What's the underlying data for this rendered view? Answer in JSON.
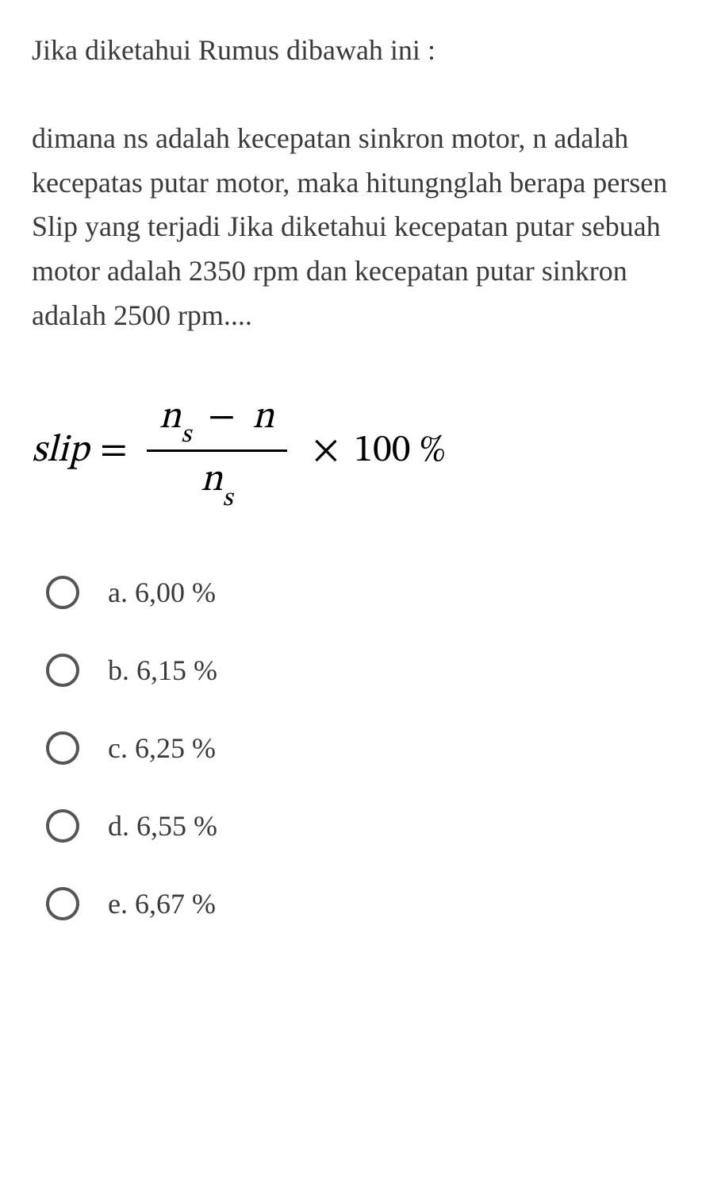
{
  "question": {
    "intro": "Jika diketahui Rumus dibawah ini :",
    "body": "dimana ns adalah kecepatan sinkron motor, n adalah kecepatas putar motor, maka hitungnglah berapa persen Slip yang terjadi Jika diketahui kecepatan putar sebuah motor adalah 2350 rpm dan kecepatan putar sinkron adalah 2500 rpm...."
  },
  "formula": {
    "lhs": "slip",
    "equals": "=",
    "numerator_n": "n",
    "numerator_sub": "s",
    "numerator_minus": "−",
    "numerator_n2": "n",
    "denominator_n": "n",
    "denominator_sub": "s",
    "times": "×",
    "hundred": "100 %"
  },
  "options": [
    {
      "label": "a. 6,00 %"
    },
    {
      "label": "b. 6,15 %"
    },
    {
      "label": "c. 6,25 %"
    },
    {
      "label": "d. 6,55 %"
    },
    {
      "label": "e. 6,67 %"
    }
  ],
  "styling": {
    "text_color": "#3a3a3a",
    "formula_color": "#000000",
    "background_color": "#ffffff",
    "radio_border_color": "#555555",
    "body_font_size": 36,
    "formula_font_size": 48,
    "option_font_size": 36
  }
}
